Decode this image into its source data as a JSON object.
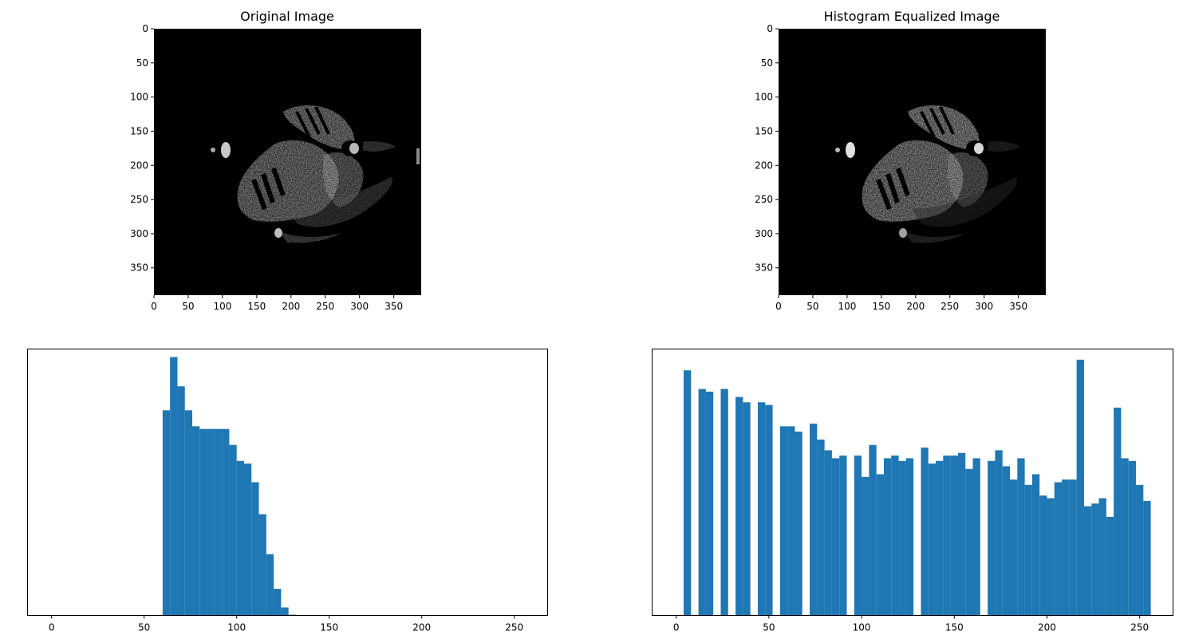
{
  "chart_data": [
    {
      "type": "image",
      "title": "Original Image",
      "xlim": [
        0,
        390
      ],
      "ylim": [
        390,
        0
      ],
      "x_ticks": [
        0,
        50,
        100,
        150,
        200,
        250,
        300,
        350
      ],
      "y_ticks": [
        0,
        50,
        100,
        150,
        200,
        250,
        300,
        350
      ],
      "colors": {
        "background": "#000000",
        "face": "#c8c8c8",
        "shadow": "#5a5a5a"
      }
    },
    {
      "type": "image",
      "title": "Histogram Equalized Image",
      "xlim": [
        0,
        390
      ],
      "ylim": [
        390,
        0
      ],
      "x_ticks": [
        0,
        50,
        100,
        150,
        200,
        250,
        300,
        350
      ],
      "y_ticks": [
        0,
        50,
        100,
        150,
        200,
        250,
        300,
        350
      ],
      "colors": {
        "background": "#000000",
        "face": "#e0e0e0",
        "shadow": "#3a3a3a"
      }
    },
    {
      "type": "bar",
      "bin_width": 4,
      "xlim": [
        -13,
        268
      ],
      "ylim": [
        0,
        1.0
      ],
      "x_ticks": [
        0,
        50,
        100,
        150,
        200,
        250
      ],
      "bar_color": "#1f77b4",
      "bins": [
        {
          "x": 60,
          "v": 0.77
        },
        {
          "x": 64,
          "v": 0.97
        },
        {
          "x": 68,
          "v": 0.86
        },
        {
          "x": 72,
          "v": 0.77
        },
        {
          "x": 76,
          "v": 0.71
        },
        {
          "x": 80,
          "v": 0.7
        },
        {
          "x": 84,
          "v": 0.7
        },
        {
          "x": 88,
          "v": 0.7
        },
        {
          "x": 92,
          "v": 0.7
        },
        {
          "x": 96,
          "v": 0.64
        },
        {
          "x": 100,
          "v": 0.58
        },
        {
          "x": 104,
          "v": 0.57
        },
        {
          "x": 108,
          "v": 0.5
        },
        {
          "x": 112,
          "v": 0.38
        },
        {
          "x": 116,
          "v": 0.23
        },
        {
          "x": 120,
          "v": 0.1
        },
        {
          "x": 124,
          "v": 0.03
        },
        {
          "x": 128,
          "v": 0.003
        }
      ]
    },
    {
      "type": "bar",
      "bin_width": 4,
      "xlim": [
        -13,
        268
      ],
      "ylim": [
        0,
        1.0
      ],
      "x_ticks": [
        0,
        50,
        100,
        150,
        200,
        250
      ],
      "bar_color": "#1f77b4",
      "bins": [
        {
          "x": 4,
          "v": 0.92
        },
        {
          "x": 12,
          "v": 0.85
        },
        {
          "x": 16,
          "v": 0.84
        },
        {
          "x": 24,
          "v": 0.85
        },
        {
          "x": 32,
          "v": 0.82
        },
        {
          "x": 36,
          "v": 0.8
        },
        {
          "x": 44,
          "v": 0.8
        },
        {
          "x": 48,
          "v": 0.79
        },
        {
          "x": 56,
          "v": 0.71
        },
        {
          "x": 60,
          "v": 0.71
        },
        {
          "x": 64,
          "v": 0.69
        },
        {
          "x": 72,
          "v": 0.72
        },
        {
          "x": 76,
          "v": 0.66
        },
        {
          "x": 80,
          "v": 0.62
        },
        {
          "x": 84,
          "v": 0.59
        },
        {
          "x": 88,
          "v": 0.6
        },
        {
          "x": 96,
          "v": 0.6
        },
        {
          "x": 100,
          "v": 0.52
        },
        {
          "x": 104,
          "v": 0.64
        },
        {
          "x": 108,
          "v": 0.53
        },
        {
          "x": 112,
          "v": 0.59
        },
        {
          "x": 116,
          "v": 0.6
        },
        {
          "x": 120,
          "v": 0.58
        },
        {
          "x": 124,
          "v": 0.59
        },
        {
          "x": 132,
          "v": 0.63
        },
        {
          "x": 136,
          "v": 0.57
        },
        {
          "x": 140,
          "v": 0.58
        },
        {
          "x": 144,
          "v": 0.6
        },
        {
          "x": 148,
          "v": 0.6
        },
        {
          "x": 152,
          "v": 0.61
        },
        {
          "x": 156,
          "v": 0.55
        },
        {
          "x": 160,
          "v": 0.59
        },
        {
          "x": 168,
          "v": 0.58
        },
        {
          "x": 172,
          "v": 0.62
        },
        {
          "x": 176,
          "v": 0.56
        },
        {
          "x": 180,
          "v": 0.51
        },
        {
          "x": 184,
          "v": 0.59
        },
        {
          "x": 188,
          "v": 0.49
        },
        {
          "x": 192,
          "v": 0.53
        },
        {
          "x": 196,
          "v": 0.45
        },
        {
          "x": 200,
          "v": 0.44
        },
        {
          "x": 204,
          "v": 0.5
        },
        {
          "x": 208,
          "v": 0.51
        },
        {
          "x": 212,
          "v": 0.51
        },
        {
          "x": 216,
          "v": 0.96
        },
        {
          "x": 220,
          "v": 0.41
        },
        {
          "x": 224,
          "v": 0.42
        },
        {
          "x": 228,
          "v": 0.44
        },
        {
          "x": 232,
          "v": 0.37
        },
        {
          "x": 236,
          "v": 0.78
        },
        {
          "x": 240,
          "v": 0.59
        },
        {
          "x": 244,
          "v": 0.58
        },
        {
          "x": 248,
          "v": 0.49
        },
        {
          "x": 252,
          "v": 0.43
        }
      ]
    }
  ]
}
